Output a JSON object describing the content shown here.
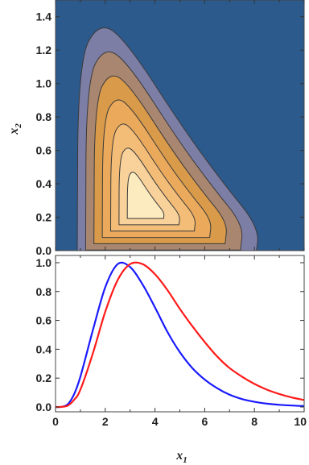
{
  "chart_data": [
    {
      "type": "contour",
      "xlabel": "x",
      "xlabel_sub": "1",
      "ylabel": "x",
      "ylabel_sub": "2",
      "xlim": [
        0,
        10
      ],
      "ylim": [
        0,
        1.5
      ],
      "yticks": [
        "0.0",
        "0.2",
        "0.4",
        "0.6",
        "0.8",
        "1.0",
        "1.2",
        "1.4"
      ],
      "yticks_values": [
        0,
        0.2,
        0.4,
        0.6,
        0.8,
        1.0,
        1.2,
        1.4
      ],
      "peak": {
        "x1": 3.4,
        "x2": 0.25
      },
      "contour_levels": [
        0.05,
        0.15,
        0.3,
        0.45,
        0.6,
        0.75,
        0.9
      ],
      "colors": {
        "background": "#2c5a8c",
        "levels": [
          "#7d7ea6",
          "#a9866f",
          "#d99a4a",
          "#eba95b",
          "#f3bd78",
          "#f8d29a",
          "#fdebc0"
        ],
        "contour_line": "#3a3a3a"
      },
      "grid": false
    },
    {
      "type": "line",
      "xlabel": "x",
      "xlabel_sub": "1",
      "ylabel": "",
      "xlim": [
        0,
        10
      ],
      "ylim": [
        0,
        1.05
      ],
      "xticks": [
        "0",
        "2",
        "4",
        "6",
        "8",
        "10"
      ],
      "xticks_values": [
        0,
        2,
        4,
        6,
        8,
        10
      ],
      "yticks": [
        "0.0",
        "0.2",
        "0.4",
        "0.6",
        "0.8",
        "1.0"
      ],
      "yticks_values": [
        0,
        0.2,
        0.4,
        0.6,
        0.8,
        1.0
      ],
      "x": [
        0,
        0.25,
        0.5,
        0.75,
        1,
        1.5,
        2,
        2.5,
        3,
        3.5,
        4,
        4.5,
        5,
        5.5,
        6,
        6.5,
        7,
        7.5,
        8,
        8.5,
        9,
        9.5,
        10
      ],
      "series": [
        {
          "values": [
            0,
            0.001,
            0.02,
            0.09,
            0.21,
            0.53,
            0.83,
            0.99,
            0.97,
            0.85,
            0.69,
            0.52,
            0.38,
            0.27,
            0.19,
            0.13,
            0.085,
            0.055,
            0.036,
            0.023,
            0.015,
            0.01,
            0.006
          ],
          "color": "#1a1aff"
        },
        {
          "values": [
            0,
            0.001,
            0.01,
            0.05,
            0.12,
            0.37,
            0.66,
            0.88,
            0.99,
            0.99,
            0.92,
            0.81,
            0.68,
            0.56,
            0.45,
            0.35,
            0.27,
            0.21,
            0.16,
            0.12,
            0.09,
            0.066,
            0.048
          ],
          "color": "#ff1a1a"
        }
      ],
      "grid": false
    }
  ]
}
